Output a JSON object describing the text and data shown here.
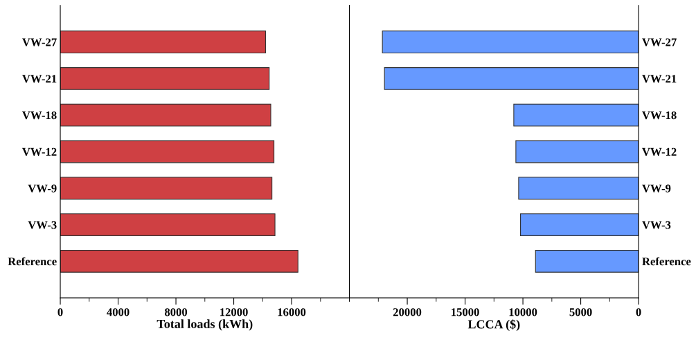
{
  "chart_data": [
    {
      "type": "bar",
      "orientation": "horizontal",
      "xlabel": "Total loads (kWh)",
      "categories": [
        "VW-27",
        "VW-21",
        "VW-18",
        "VW-12",
        "VW-9",
        "VW-3",
        "Reference"
      ],
      "values": [
        14200,
        14450,
        14560,
        14780,
        14640,
        14850,
        16440
      ],
      "color": "#cf4043",
      "xlim": [
        0,
        20000
      ],
      "xticks": [
        0,
        {
          "value": 2000,
          "label": null
        },
        4000,
        {
          "value": 6000,
          "label": null
        },
        8000,
        {
          "value": 10000,
          "label": null
        },
        12000,
        {
          "value": 14000,
          "label": null
        },
        16000,
        {
          "value": 18000,
          "label": null
        },
        {
          "value": 20000,
          "label": null
        }
      ],
      "grid": false
    },
    {
      "type": "bar",
      "orientation": "horizontal",
      "xlabel": "LCCA ($)",
      "categories": [
        "VW-27",
        "VW-21",
        "VW-18",
        "VW-12",
        "VW-9",
        "VW-3",
        "Reference"
      ],
      "values": [
        22150,
        21970,
        10790,
        10610,
        10370,
        10210,
        8910
      ],
      "color": "#6699ff",
      "xlim": [
        25000,
        0
      ],
      "xticks": [
        {
          "value": 25000,
          "label": null
        },
        {
          "value": 22500,
          "label": null
        },
        20000,
        {
          "value": 17500,
          "label": null
        },
        15000,
        {
          "value": 12500,
          "label": null
        },
        10000,
        {
          "value": 7500,
          "label": null
        },
        5000,
        {
          "value": 2500,
          "label": null
        },
        0
      ],
      "grid": false
    }
  ]
}
